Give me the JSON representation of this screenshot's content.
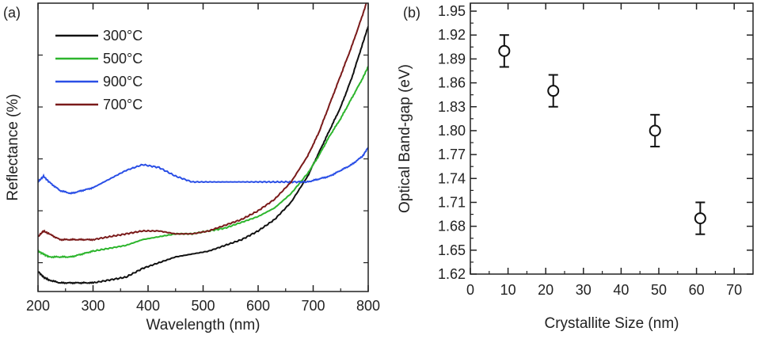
{
  "chart_data": [
    {
      "type": "line",
      "panel_label": "(a)",
      "xlabel": "Wavelength (nm)",
      "ylabel": "Reflectance (%)",
      "xlim": [
        200,
        800
      ],
      "ylim": [
        0,
        100
      ],
      "x_ticks": [
        200,
        300,
        400,
        500,
        600,
        700,
        800
      ],
      "y_tick_labels_shown": false,
      "legend_placement": "top-left",
      "x": [
        200,
        210,
        220,
        240,
        260,
        280,
        300,
        330,
        360,
        390,
        420,
        450,
        480,
        510,
        540,
        570,
        600,
        630,
        660,
        690,
        710,
        730,
        750,
        770,
        790,
        800
      ],
      "series": [
        {
          "name": "300°C",
          "color": "#111111",
          "values": [
            7,
            5,
            4,
            3,
            3,
            3,
            3,
            4,
            5,
            8,
            10,
            12,
            13,
            14,
            16,
            18,
            21,
            25,
            31,
            40,
            48,
            56,
            64,
            74,
            86,
            92
          ]
        },
        {
          "name": "500°C",
          "color": "#2db52d",
          "values": [
            14,
            13,
            12,
            12,
            12,
            13,
            14,
            15,
            16,
            18,
            19,
            20,
            20,
            21,
            22,
            24,
            26,
            29,
            34,
            41,
            47,
            54,
            60,
            67,
            74,
            78
          ]
        },
        {
          "name": "900°C",
          "color": "#2a4fe6",
          "values": [
            38,
            40,
            38,
            35,
            34,
            35,
            36,
            39,
            42,
            44,
            43,
            40,
            38,
            38,
            38,
            38,
            38,
            38,
            38,
            38,
            39,
            40,
            42,
            44,
            47,
            50
          ]
        },
        {
          "name": "700°C",
          "color": "#7a1a1a",
          "values": [
            19,
            21,
            20,
            18,
            18,
            18,
            18,
            19,
            20,
            21,
            21,
            20,
            20,
            21,
            23,
            25,
            28,
            32,
            38,
            47,
            55,
            65,
            75,
            85,
            96,
            102
          ]
        }
      ]
    },
    {
      "type": "scatter",
      "panel_label": "(b)",
      "xlabel": "Crystallite Size (nm)",
      "ylabel": "Optical Band-gap (eV)",
      "xlim": [
        0,
        75
      ],
      "ylim": [
        1.62,
        1.96
      ],
      "x_ticks": [
        0,
        10,
        20,
        30,
        40,
        50,
        60,
        70
      ],
      "y_ticks": [
        "1.62",
        "1.65",
        "1.68",
        "1.71",
        "1.74",
        "1.77",
        "1.80",
        "1.83",
        "1.86",
        "1.89",
        "1.92",
        "1.95"
      ],
      "points": [
        {
          "x": 9,
          "y": 1.9,
          "error": 0.02
        },
        {
          "x": 22,
          "y": 1.85,
          "error": 0.02
        },
        {
          "x": 49,
          "y": 1.8,
          "error": 0.02
        },
        {
          "x": 61,
          "y": 1.69,
          "error": 0.02
        }
      ]
    }
  ]
}
